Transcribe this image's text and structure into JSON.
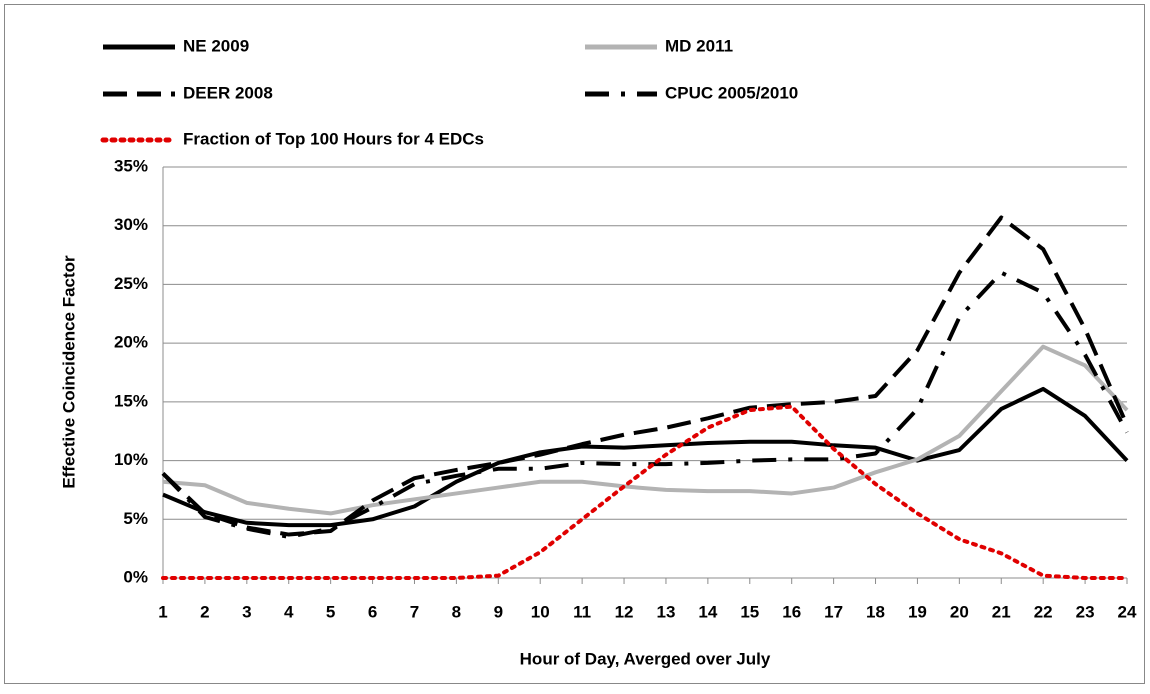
{
  "chart_data": {
    "type": "line",
    "xlabel": "Hour of Day,  Averged over July",
    "ylabel": "Effective Coincidence Factor",
    "x": [
      1,
      2,
      3,
      4,
      5,
      6,
      7,
      8,
      9,
      10,
      11,
      12,
      13,
      14,
      15,
      16,
      17,
      18,
      19,
      20,
      21,
      22,
      23,
      24
    ],
    "xlim": [
      1,
      24
    ],
    "xticks": [
      1,
      2,
      3,
      4,
      5,
      6,
      7,
      8,
      9,
      10,
      11,
      12,
      13,
      14,
      15,
      16,
      17,
      18,
      19,
      20,
      21,
      22,
      23,
      24
    ],
    "ylim": [
      0,
      35
    ],
    "yticks": [
      {
        "value": 0,
        "label": "0%"
      },
      {
        "value": 5,
        "label": "5%"
      },
      {
        "value": 10,
        "label": "10%"
      },
      {
        "value": 15,
        "label": "15%"
      },
      {
        "value": 20,
        "label": "20%"
      },
      {
        "value": 25,
        "label": "25%"
      },
      {
        "value": 30,
        "label": "30%"
      },
      {
        "value": 35,
        "label": "35%"
      }
    ],
    "grid": true,
    "legend": "top",
    "series": [
      {
        "name": "NE 2009",
        "color": "#000000",
        "dash": "solid",
        "values": [
          7.1,
          5.6,
          4.7,
          4.5,
          4.5,
          5.0,
          6.1,
          8.2,
          9.8,
          10.7,
          11.2,
          11.1,
          11.3,
          11.5,
          11.6,
          11.6,
          11.3,
          11.1,
          10.0,
          10.9,
          14.4,
          16.1,
          13.8,
          10.0
        ]
      },
      {
        "name": "MD 2011",
        "color": "#b3b3b3",
        "dash": "solid",
        "values": [
          8.2,
          7.9,
          6.4,
          5.9,
          5.5,
          6.2,
          6.7,
          7.2,
          7.7,
          8.2,
          8.2,
          7.8,
          7.5,
          7.4,
          7.4,
          7.2,
          7.7,
          9.0,
          10.1,
          12.1,
          15.9,
          19.7,
          18.1,
          14.3
        ]
      },
      {
        "name": "DEER 2008",
        "color": "#000000",
        "dash": "dashed",
        "values": [
          8.9,
          5.5,
          4.3,
          3.7,
          4.0,
          6.6,
          8.5,
          9.2,
          9.8,
          10.5,
          11.4,
          12.2,
          12.8,
          13.6,
          14.5,
          14.8,
          15.0,
          15.5,
          19.4,
          26.0,
          30.7,
          28.0,
          21.2,
          13.0
        ]
      },
      {
        "name": "CPUC 2005/2010",
        "color": "#000000",
        "dash": "dashdot",
        "values": [
          8.9,
          5.2,
          4.2,
          3.5,
          4.2,
          6.0,
          8.0,
          8.7,
          9.3,
          9.3,
          9.8,
          9.7,
          9.7,
          9.8,
          10.0,
          10.1,
          10.1,
          10.6,
          14.4,
          22.2,
          26.0,
          24.3,
          19.0,
          12.4
        ]
      },
      {
        "name": "Fraction of Top 100 Hours for 4 EDCs",
        "color": "#e00000",
        "dash": "dotted",
        "values": [
          0,
          0,
          0,
          0,
          0,
          0,
          0,
          0,
          0.2,
          2.2,
          5.0,
          7.8,
          10.5,
          12.8,
          14.3,
          14.6,
          11.0,
          8.0,
          5.5,
          3.3,
          2.1,
          0.2,
          0,
          0
        ]
      }
    ]
  }
}
